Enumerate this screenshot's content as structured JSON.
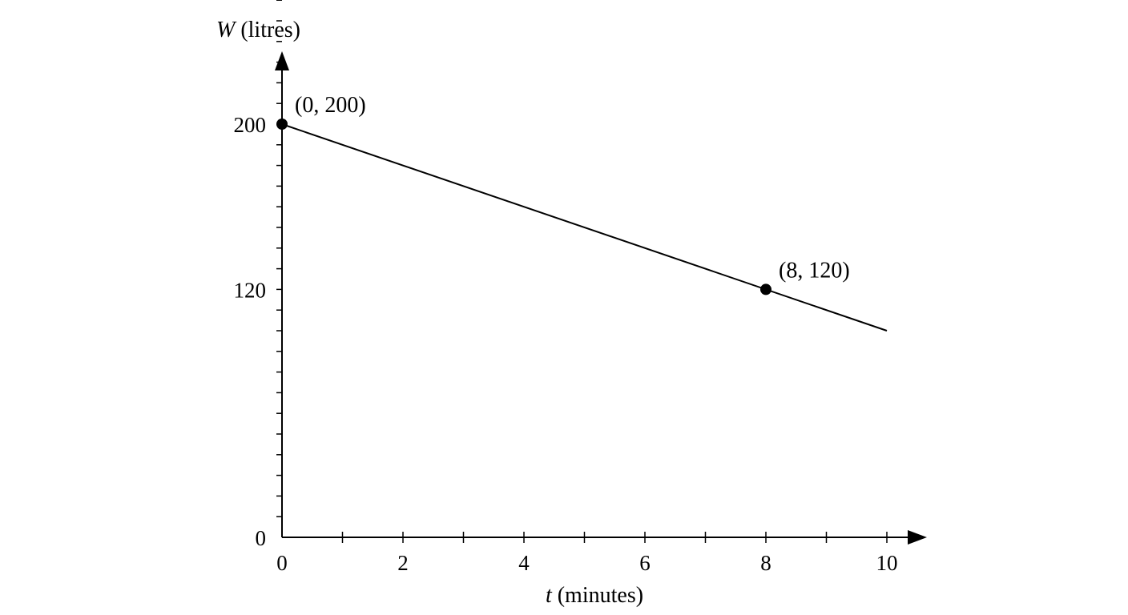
{
  "chart_data": {
    "type": "line",
    "title": "",
    "xlabel": {
      "var": "t",
      "unit": " (minutes)"
    },
    "ylabel": {
      "var": "W",
      "unit": " (litres)"
    },
    "xlim": [
      0,
      10
    ],
    "ylim": [
      0,
      280
    ],
    "x_minor_ticks": [
      1,
      2,
      3,
      4,
      5,
      6,
      7,
      8,
      9,
      10
    ],
    "x_tick_labels": [
      {
        "value": 0,
        "label": "0"
      },
      {
        "value": 2,
        "label": "2"
      },
      {
        "value": 4,
        "label": "4"
      },
      {
        "value": 6,
        "label": "6"
      },
      {
        "value": 8,
        "label": "8"
      },
      {
        "value": 10,
        "label": "10"
      }
    ],
    "y_minor_ticks": [
      10,
      20,
      30,
      40,
      50,
      60,
      70,
      80,
      90,
      100,
      110,
      130,
      140,
      150,
      160,
      170,
      180,
      190,
      210,
      220,
      230,
      240,
      250,
      260,
      270
    ],
    "y_tick_labels": [
      {
        "value": 0,
        "label": "0"
      },
      {
        "value": 120,
        "label": "120"
      },
      {
        "value": 200,
        "label": "200"
      }
    ],
    "series": [
      {
        "x": [
          0,
          10
        ],
        "y": [
          200,
          100
        ]
      }
    ],
    "points": [
      {
        "x": 0,
        "y": 200,
        "label": "(0, 200)"
      },
      {
        "x": 8,
        "y": 120,
        "label": "(8, 120)"
      }
    ],
    "grid": false,
    "colors": {
      "line": "#000000",
      "axis": "#000000",
      "point": "#000000"
    }
  }
}
